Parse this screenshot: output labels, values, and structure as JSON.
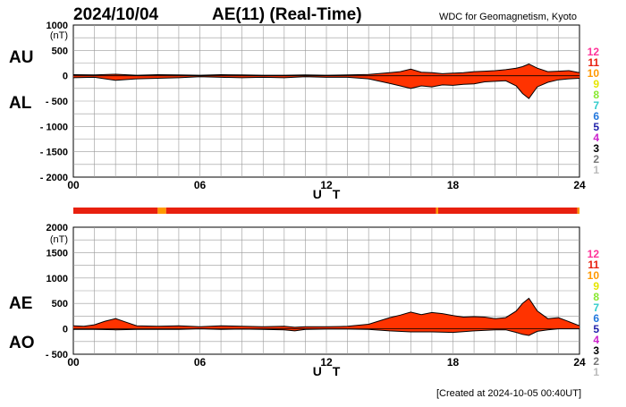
{
  "header": {
    "date": "2024/10/04",
    "title": "AE(11) (Real-Time)",
    "source": "WDC for Geomagnetism, Kyoto"
  },
  "footer": {
    "created": "[Created at 2024-10-05 00:40UT]"
  },
  "chart_data": [
    {
      "type": "area",
      "upper_label": "AU",
      "lower_label": "AL",
      "unit": "(nT)",
      "xlabel": "U T",
      "xlim": [
        0,
        24
      ],
      "xticks": [
        "00",
        "06",
        "12",
        "18",
        "24"
      ],
      "ylim": [
        -2000,
        1000
      ],
      "yticks": [
        "1000",
        "500",
        "0",
        "- 500",
        "- 1000",
        "- 1500",
        "- 2000"
      ],
      "fill_color": "#ff3300",
      "series": [
        {
          "name": "AU",
          "x": [
            0,
            1,
            2,
            3,
            4,
            5,
            6,
            7,
            8,
            9,
            10,
            11,
            12,
            13,
            14,
            15,
            15.5,
            16,
            16.5,
            17,
            17.5,
            18,
            18.5,
            19,
            19.5,
            20,
            20.5,
            21,
            21.3,
            21.6,
            22,
            22.5,
            23,
            23.5,
            24
          ],
          "values": [
            20,
            15,
            30,
            10,
            20,
            15,
            10,
            20,
            15,
            10,
            10,
            15,
            10,
            15,
            25,
            60,
            80,
            130,
            70,
            60,
            40,
            50,
            60,
            80,
            90,
            100,
            120,
            150,
            180,
            230,
            150,
            80,
            90,
            100,
            60
          ]
        },
        {
          "name": "AL",
          "x": [
            0,
            1,
            2,
            3,
            4,
            5,
            6,
            7,
            8,
            9,
            10,
            11,
            12,
            13,
            14,
            15,
            15.5,
            16,
            16.5,
            17,
            17.5,
            18,
            18.5,
            19,
            19.5,
            20,
            20.5,
            21,
            21.3,
            21.6,
            22,
            22.5,
            23,
            23.5,
            24
          ],
          "values": [
            -40,
            -30,
            -90,
            -60,
            -50,
            -40,
            -20,
            -30,
            -40,
            -30,
            -40,
            -20,
            -30,
            -30,
            -60,
            -150,
            -200,
            -250,
            -200,
            -220,
            -180,
            -190,
            -170,
            -160,
            -120,
            -110,
            -100,
            -200,
            -350,
            -450,
            -220,
            -130,
            -80,
            -60,
            -50
          ]
        }
      ]
    },
    {
      "type": "area",
      "upper_label": "AE",
      "lower_label": "AO",
      "unit": "(nT)",
      "xlabel": "U T",
      "xlim": [
        0,
        24
      ],
      "xticks": [
        "00",
        "06",
        "12",
        "18",
        "24"
      ],
      "ylim": [
        -500,
        2000
      ],
      "yticks": [
        "2000",
        "1500",
        "1000",
        "500",
        "0",
        "- 500"
      ],
      "fill_color": "#ff3300",
      "series": [
        {
          "name": "AE",
          "x": [
            0,
            0.5,
            1,
            1.5,
            2,
            2.5,
            3,
            4,
            5,
            6,
            7,
            8,
            9,
            10,
            10.5,
            11,
            12,
            13,
            14,
            15,
            15.5,
            16,
            16.5,
            17,
            17.5,
            18,
            18.5,
            19,
            19.5,
            20,
            20.5,
            21,
            21.3,
            21.6,
            22,
            22.5,
            23,
            23.5,
            24
          ],
          "values": [
            60,
            50,
            80,
            150,
            200,
            130,
            60,
            50,
            60,
            40,
            60,
            50,
            40,
            50,
            30,
            40,
            40,
            50,
            90,
            220,
            270,
            330,
            280,
            320,
            300,
            260,
            230,
            240,
            230,
            200,
            220,
            350,
            500,
            600,
            350,
            200,
            220,
            140,
            60
          ]
        },
        {
          "name": "AO",
          "x": [
            0,
            1,
            2,
            3,
            4,
            5,
            6,
            7,
            8,
            9,
            10,
            10.5,
            11,
            12,
            13,
            14,
            15,
            16,
            17,
            18,
            19,
            20,
            20.5,
            21,
            21.3,
            21.6,
            22,
            22.5,
            23,
            24
          ],
          "values": [
            -10,
            -10,
            -20,
            -10,
            -10,
            -10,
            0,
            -10,
            -5,
            -10,
            -20,
            -40,
            -10,
            -5,
            -5,
            -10,
            -40,
            -60,
            -60,
            -70,
            -40,
            -20,
            -20,
            -70,
            -110,
            -130,
            -50,
            -20,
            0,
            0
          ]
        }
      ]
    }
  ],
  "scale_bar": {
    "segments": [
      {
        "from": 0,
        "to": 4.0,
        "level": "11"
      },
      {
        "from": 4.0,
        "to": 4.4,
        "level": "10"
      },
      {
        "from": 4.4,
        "to": 17.2,
        "level": "11"
      },
      {
        "from": 17.2,
        "to": 17.3,
        "level": "10"
      },
      {
        "from": 17.3,
        "to": 23.9,
        "level": "11"
      },
      {
        "from": 23.9,
        "to": 24,
        "level": "10"
      }
    ]
  },
  "station_scale": [
    {
      "label": "12",
      "color": "#ff3399"
    },
    {
      "label": "11",
      "color": "#e8200f"
    },
    {
      "label": "10",
      "color": "#ff9900"
    },
    {
      "label": "9",
      "color": "#e6e600"
    },
    {
      "label": "8",
      "color": "#88e830"
    },
    {
      "label": "7",
      "color": "#33cccc"
    },
    {
      "label": "6",
      "color": "#2277dd"
    },
    {
      "label": "5",
      "color": "#2222aa"
    },
    {
      "label": "4",
      "color": "#cc22cc"
    },
    {
      "label": "3",
      "color": "#000000"
    },
    {
      "label": "2",
      "color": "#777777"
    },
    {
      "label": "1",
      "color": "#bbbbbb"
    }
  ]
}
